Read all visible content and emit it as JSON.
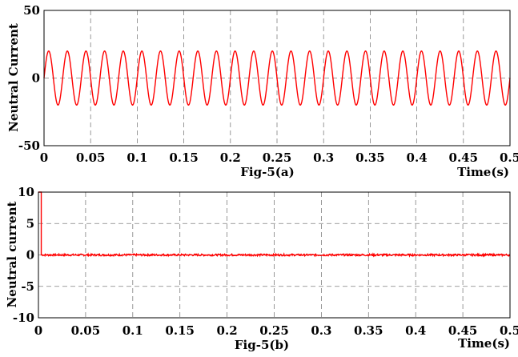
{
  "colors": {
    "series": "#ff0000",
    "axes": "#000000",
    "grid": "#7f7f7f",
    "background": "#ffffff"
  },
  "chart_data": [
    {
      "type": "line",
      "title": "",
      "caption": "Fig-5(a)",
      "xlabel": "Time(s)",
      "ylabel": "Neutral Current",
      "xlim": [
        0,
        0.5
      ],
      "ylim": [
        -50,
        50
      ],
      "x_ticks": [
        "0",
        "0.05",
        "0.1",
        "0.15",
        "0.2",
        "0.25",
        "0.3",
        "0.35",
        "0.4",
        "0.45",
        "0.5"
      ],
      "y_ticks": [
        "50",
        "0",
        "-50"
      ],
      "y_tick_values": [
        50,
        0,
        -50
      ],
      "grid": true,
      "series": [
        {
          "kind": "sinusoid",
          "amplitude": 20,
          "frequency_hz": 50,
          "phase": "starts at 0, rising",
          "x_range": [
            0,
            0.5
          ]
        }
      ]
    },
    {
      "type": "line",
      "title": "",
      "caption": "Fig-5(b)",
      "xlabel": "Time(s)",
      "ylabel": "Neutral current",
      "xlim": [
        0,
        0.5
      ],
      "ylim": [
        -10,
        10
      ],
      "x_ticks": [
        "0",
        "0.05",
        "0.1",
        "0.15",
        "0.2",
        "0.25",
        "0.3",
        "0.35",
        "0.4",
        "0.45",
        "0.5"
      ],
      "y_ticks": [
        "10",
        "5",
        "0",
        "-5",
        "-10"
      ],
      "y_tick_values": [
        10,
        5,
        0,
        -5,
        -10
      ],
      "grid": true,
      "series": [
        {
          "kind": "step-then-steady",
          "initial_transient": {
            "x": [
              0,
              0.003
            ],
            "y": [
              10,
              0
            ]
          },
          "steady_value": 0,
          "ripple": 0.15,
          "x_range": [
            0,
            0.5
          ]
        }
      ]
    }
  ]
}
